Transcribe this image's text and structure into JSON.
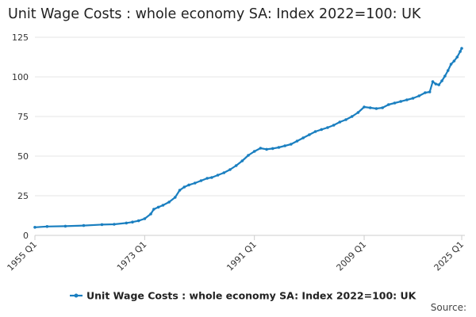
{
  "chart_data": {
    "type": "line",
    "title": "Unit Wage Costs : whole economy SA: Index 2022=100: UK",
    "xlabel": "",
    "ylabel": "",
    "x_tick_labels": [
      "1955 Q1",
      "1973 Q1",
      "1991 Q1",
      "2009 Q1",
      "2025 Q1"
    ],
    "x_range": [
      "1955 Q1",
      "2025 Q1"
    ],
    "ylim": [
      0,
      125
    ],
    "y_ticks": [
      0,
      25,
      50,
      75,
      100,
      125
    ],
    "grid": "horizontal",
    "legend_position": "bottom",
    "series": [
      {
        "name": "Unit Wage Costs : whole economy SA: Index 2022=100: UK",
        "color": "#1a7fc0",
        "points": [
          [
            "1955 Q1",
            5.1
          ],
          [
            "1957 Q1",
            5.6
          ],
          [
            "1960 Q1",
            5.8
          ],
          [
            "1963 Q1",
            6.2
          ],
          [
            "1966 Q1",
            6.8
          ],
          [
            "1968 Q1",
            7.0
          ],
          [
            "1970 Q1",
            7.8
          ],
          [
            "1971 Q1",
            8.4
          ],
          [
            "1972 Q1",
            9.2
          ],
          [
            "1973 Q1",
            10.5
          ],
          [
            "1974 Q1",
            13.5
          ],
          [
            "1974 Q3",
            16.5
          ],
          [
            "1975 Q2",
            17.8
          ],
          [
            "1976 Q1",
            19.0
          ],
          [
            "1977 Q1",
            21.0
          ],
          [
            "1978 Q1",
            24.0
          ],
          [
            "1978 Q4",
            28.5
          ],
          [
            "1979 Q3",
            30.5
          ],
          [
            "1980 Q2",
            31.8
          ],
          [
            "1981 Q2",
            33.0
          ],
          [
            "1982 Q2",
            34.5
          ],
          [
            "1983 Q2",
            36.0
          ],
          [
            "1984 Q1",
            36.5
          ],
          [
            "1985 Q1",
            38.0
          ],
          [
            "1986 Q1",
            39.5
          ],
          [
            "1987 Q1",
            41.5
          ],
          [
            "1988 Q1",
            44.0
          ],
          [
            "1989 Q1",
            47.0
          ],
          [
            "1990 Q1",
            50.5
          ],
          [
            "1991 Q1",
            53.0
          ],
          [
            "1992 Q1",
            55.0
          ],
          [
            "1993 Q1",
            54.3
          ],
          [
            "1994 Q1",
            54.8
          ],
          [
            "1995 Q1",
            55.5
          ],
          [
            "1996 Q1",
            56.5
          ],
          [
            "1997 Q1",
            57.5
          ],
          [
            "1998 Q1",
            59.5
          ],
          [
            "1999 Q1",
            61.5
          ],
          [
            "2000 Q1",
            63.5
          ],
          [
            "2001 Q1",
            65.5
          ],
          [
            "2002 Q1",
            66.8
          ],
          [
            "2003 Q1",
            68.0
          ],
          [
            "2004 Q1",
            69.5
          ],
          [
            "2005 Q1",
            71.5
          ],
          [
            "2006 Q1",
            73.0
          ],
          [
            "2007 Q1",
            75.0
          ],
          [
            "2008 Q1",
            77.5
          ],
          [
            "2009 Q1",
            81.0
          ],
          [
            "2010 Q1",
            80.5
          ],
          [
            "2011 Q1",
            80.0
          ],
          [
            "2012 Q1",
            80.5
          ],
          [
            "2013 Q1",
            82.5
          ],
          [
            "2014 Q1",
            83.5
          ],
          [
            "2015 Q1",
            84.5
          ],
          [
            "2016 Q1",
            85.5
          ],
          [
            "2017 Q1",
            86.5
          ],
          [
            "2018 Q1",
            88.0
          ],
          [
            "2019 Q1",
            90.0
          ],
          [
            "2019 Q4",
            90.5
          ],
          [
            "2020 Q2",
            97.0
          ],
          [
            "2020 Q4",
            95.5
          ],
          [
            "2021 Q2",
            95.0
          ],
          [
            "2021 Q4",
            97.5
          ],
          [
            "2022 Q2",
            100.5
          ],
          [
            "2022 Q4",
            104.0
          ],
          [
            "2023 Q2",
            108.0
          ],
          [
            "2023 Q4",
            110.0
          ],
          [
            "2024 Q2",
            112.5
          ],
          [
            "2024 Q4",
            116.0
          ],
          [
            "2025 Q1",
            118.0
          ]
        ]
      }
    ]
  },
  "footer": {
    "source_label": "Source:"
  }
}
